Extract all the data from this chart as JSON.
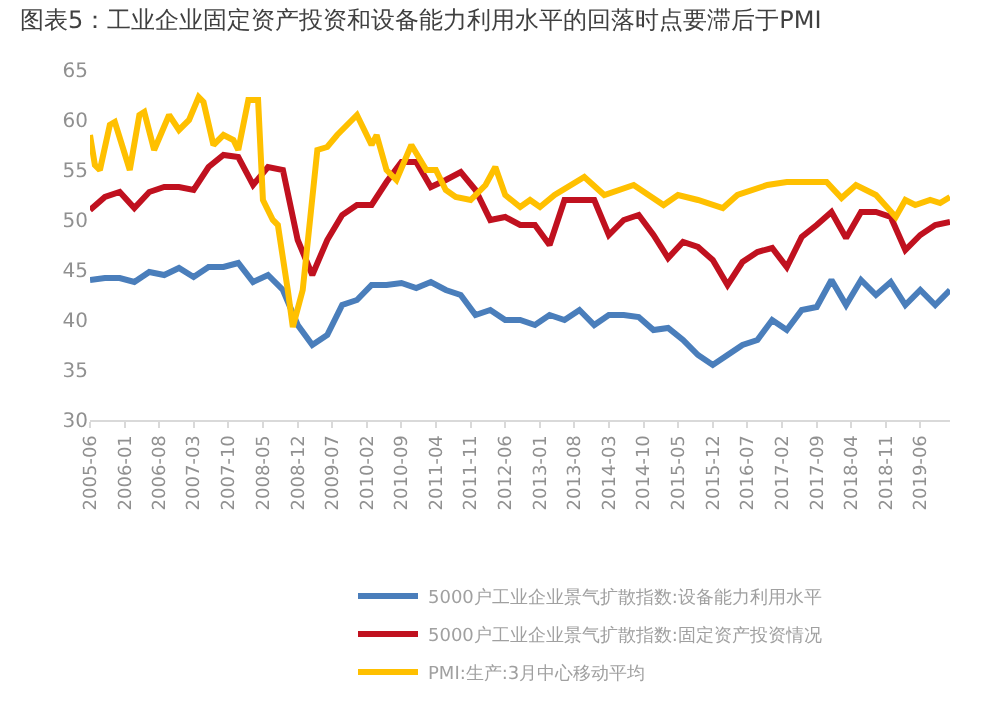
{
  "chart_data": {
    "type": "line",
    "title": "图表5：工业企业固定资产投资和设备能力利用水平的回落时点要滞后于PMI",
    "ylim": [
      30,
      65
    ],
    "yticks": [
      30,
      35,
      40,
      45,
      50,
      55,
      60,
      65
    ],
    "xlim": [
      "2005-06",
      "2019-12"
    ],
    "xticks": [
      "2005-06",
      "2006-01",
      "2006-08",
      "2007-03",
      "2007-10",
      "2008-05",
      "2008-12",
      "2009-07",
      "2010-02",
      "2010-09",
      "2011-04",
      "2011-11",
      "2012-06",
      "2013-01",
      "2013-08",
      "2014-03",
      "2014-10",
      "2015-05",
      "2015-12",
      "2016-07",
      "2017-02",
      "2017-09",
      "2018-04",
      "2018-11",
      "2019-06"
    ],
    "grid": false,
    "legend": "bottom",
    "marker": "none",
    "line_style": "solid",
    "series": [
      {
        "name": "5000户工业企业景气扩散指数:设备能力利用水平",
        "color": "#4a7ebb",
        "x": [
          "2005-06",
          "2005-09",
          "2005-12",
          "2006-03",
          "2006-06",
          "2006-09",
          "2006-12",
          "2007-03",
          "2007-06",
          "2007-09",
          "2007-12",
          "2008-03",
          "2008-06",
          "2008-09",
          "2008-12",
          "2009-03",
          "2009-06",
          "2009-09",
          "2009-12",
          "2010-03",
          "2010-06",
          "2010-09",
          "2010-12",
          "2011-03",
          "2011-06",
          "2011-09",
          "2011-12",
          "2012-03",
          "2012-06",
          "2012-09",
          "2012-12",
          "2013-03",
          "2013-06",
          "2013-09",
          "2013-12",
          "2014-03",
          "2014-06",
          "2014-09",
          "2014-12",
          "2015-03",
          "2015-06",
          "2015-09",
          "2015-12",
          "2016-03",
          "2016-06",
          "2016-09",
          "2016-12",
          "2017-03",
          "2017-06",
          "2017-09",
          "2017-12",
          "2018-03",
          "2018-06",
          "2018-09",
          "2018-12",
          "2019-03",
          "2019-06",
          "2019-09",
          "2019-12"
        ],
        "values": [
          44,
          44.2,
          44.2,
          43.8,
          44.8,
          44.5,
          45.2,
          44.3,
          45.3,
          45.3,
          45.7,
          43.8,
          44.5,
          43,
          39.5,
          37.5,
          38.5,
          41.5,
          42,
          43.5,
          43.5,
          43.7,
          43.2,
          43.8,
          43,
          42.5,
          40.5,
          41,
          40,
          40,
          39.5,
          40.5,
          40,
          41,
          39.5,
          40.5,
          40.5,
          40.3,
          39,
          39.2,
          38,
          36.5,
          35.5,
          36.5,
          37.5,
          38,
          40,
          39,
          41,
          41.3,
          44,
          41.5,
          44,
          42.5,
          43.8,
          41.5,
          43,
          41.5,
          43
        ]
      },
      {
        "name": "5000户工业企业景气扩散指数:固定资产投资情况",
        "color": "#c0111f",
        "x": [
          "2005-06",
          "2005-09",
          "2005-12",
          "2006-03",
          "2006-06",
          "2006-09",
          "2006-12",
          "2007-03",
          "2007-06",
          "2007-09",
          "2007-12",
          "2008-03",
          "2008-06",
          "2008-09",
          "2008-12",
          "2009-03",
          "2009-06",
          "2009-09",
          "2009-12",
          "2010-03",
          "2010-06",
          "2010-09",
          "2010-12",
          "2011-03",
          "2011-06",
          "2011-09",
          "2011-12",
          "2012-03",
          "2012-06",
          "2012-09",
          "2012-12",
          "2013-03",
          "2013-06",
          "2013-09",
          "2013-12",
          "2014-03",
          "2014-06",
          "2014-09",
          "2014-12",
          "2015-03",
          "2015-06",
          "2015-09",
          "2015-12",
          "2016-03",
          "2016-06",
          "2016-09",
          "2016-12",
          "2017-03",
          "2017-06",
          "2017-09",
          "2017-12",
          "2018-03",
          "2018-06",
          "2018-09",
          "2018-12",
          "2019-03",
          "2019-06",
          "2019-09",
          "2019-12"
        ],
        "values": [
          51,
          52.3,
          52.8,
          51.2,
          52.8,
          53.3,
          53.3,
          53,
          55.3,
          56.5,
          56.3,
          53.5,
          55.3,
          55,
          48,
          44.5,
          48,
          50.5,
          51.5,
          51.5,
          53.8,
          55.8,
          55.8,
          53.3,
          54,
          54.8,
          53,
          50,
          50.3,
          49.5,
          49.5,
          47.5,
          52,
          52,
          52,
          48.5,
          50,
          50.5,
          48.5,
          46.2,
          47.8,
          47.3,
          46,
          43.5,
          45.8,
          46.8,
          47.2,
          45.3,
          48.3,
          49.5,
          50.8,
          48.2,
          50.8,
          50.8,
          50.3,
          47,
          48.5,
          49.5,
          49.8
        ]
      },
      {
        "name": "PMI:生产:3月中心移动平均",
        "color": "#ffc000",
        "x": [
          "2005-06",
          "2005-07",
          "2005-08",
          "2005-10",
          "2005-11",
          "2006-02",
          "2006-04",
          "2006-05",
          "2006-07",
          "2006-10",
          "2006-12",
          "2007-02",
          "2007-04",
          "2007-05",
          "2007-07",
          "2007-09",
          "2007-11",
          "2007-12",
          "2008-02",
          "2008-04",
          "2008-05",
          "2008-07",
          "2008-08",
          "2008-10",
          "2008-11",
          "2009-01",
          "2009-04",
          "2009-06",
          "2009-08",
          "2009-12",
          "2010-03",
          "2010-04",
          "2010-06",
          "2010-08",
          "2010-11",
          "2011-02",
          "2011-04",
          "2011-06",
          "2011-08",
          "2011-11",
          "2012-02",
          "2012-04",
          "2012-06",
          "2012-09",
          "2012-11",
          "2013-01",
          "2013-04",
          "2013-10",
          "2014-02",
          "2014-08",
          "2015-02",
          "2015-05",
          "2015-09",
          "2016-02",
          "2016-05",
          "2016-11",
          "2017-03",
          "2017-11",
          "2018-02",
          "2018-05",
          "2018-09",
          "2019-01",
          "2019-03",
          "2019-05",
          "2019-08",
          "2019-10",
          "2019-12"
        ],
        "values": [
          58.5,
          55.5,
          55,
          59.5,
          59.8,
          55,
          60.5,
          60.8,
          57,
          60.5,
          59,
          60,
          62.3,
          61.8,
          57.5,
          58.5,
          58,
          57,
          62,
          62,
          52,
          50,
          49.5,
          43,
          39.3,
          43,
          57,
          57.3,
          58.5,
          60.5,
          57.5,
          58.5,
          55,
          54,
          57.5,
          55,
          55,
          53,
          52.3,
          52,
          53.5,
          55.3,
          52.5,
          51.3,
          52,
          51.3,
          52.5,
          54.3,
          52.5,
          53.5,
          51.5,
          52.5,
          52,
          51.2,
          52.5,
          53.5,
          53.8,
          53.8,
          52.2,
          53.5,
          52.5,
          50.3,
          52,
          51.5,
          52,
          51.7,
          52.3
        ]
      }
    ]
  }
}
